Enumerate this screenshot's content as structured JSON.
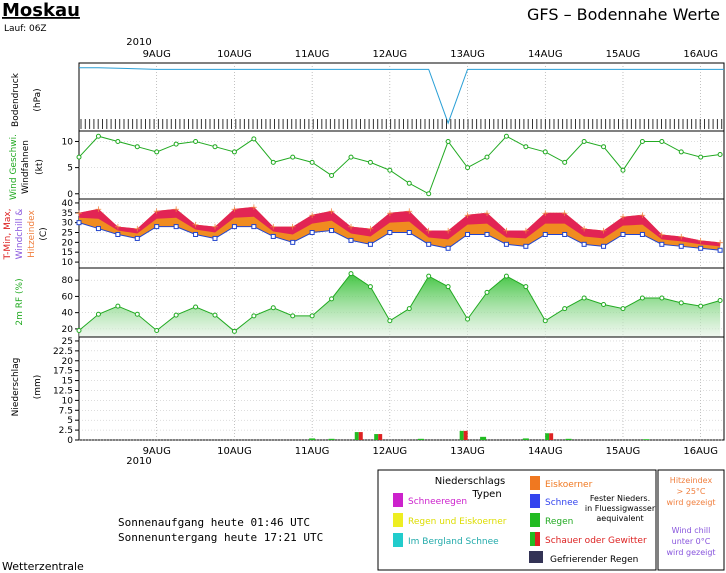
{
  "header": {
    "location": "Moskau",
    "run": "Lauf: 06Z",
    "title": "GFS – Bodennahe Werte"
  },
  "footer": {
    "sunrise": "Sonnenaufgang heute 01:46 UTC",
    "sunset": "Sonnenuntergang heute 17:21 UTC",
    "source": "Wetterzentrale"
  },
  "legend": {
    "title_line1": "Niederschlags",
    "title_line2": "Typen",
    "snow_rain": "Schneeregen",
    "rain_ice": "Regen und Eiskoerner",
    "mountain_snow": "Im Bergland Schnee",
    "ice_pellets": "Eiskoerner",
    "snow": "Schnee",
    "solid_line1": "Fester Nieders.",
    "solid_line2": "in Fluessigwasser",
    "solid_line3": "aequivalent",
    "rain": "Regen",
    "showers": "Schauer oder Gewitter",
    "freezing_rain": "Gefrierender Regen",
    "heat_line1": "Hitzeindex",
    "heat_line2": "> 25°C",
    "heat_line3": "wird gezeigt",
    "chill_line1": "Wind chill",
    "chill_line2": "unter 0°C",
    "chill_line3": "wird gezeigt"
  },
  "colors": {
    "pressure": "#2a9fd6",
    "wind": "#22aa22",
    "tmax_fill": "#e0185a",
    "tmin_fill": "#f08c20",
    "rh": "#22aa22",
    "snow_rain": "#cc22cc",
    "rain_ice": "#eeee22",
    "mountain_snow": "#22cccc",
    "ice_pellets": "#f07820",
    "snow": "#3344ee",
    "rain": "#22bb22",
    "showers": "#dd2222",
    "freezing_rain": "#333355",
    "chill_text": "#8855dd",
    "heat_text": "#f08040"
  },
  "chart_data": {
    "type": "line",
    "x_axis": {
      "top_year": "2010",
      "bottom_year": "2010",
      "day_labels": [
        "9AUG",
        "10AUG",
        "11AUG",
        "12AUG",
        "13AUG",
        "14AUG",
        "15AUG",
        "16AUG"
      ],
      "day_positions": [
        1,
        2,
        3,
        4,
        5,
        6,
        7,
        8
      ],
      "range": [
        0.0,
        8.3
      ]
    },
    "panels": [
      {
        "id": "pressure",
        "ylabel_line1": "Bodendruck",
        "ylabel_line2": "(hPa)",
        "series": [
          {
            "x": [
              0.0,
              0.25,
              1.0,
              2.0,
              3.0,
              4.0,
              4.5,
              4.75,
              5.0,
              5.5,
              6.0,
              7.0,
              8.0,
              8.3
            ],
            "values": [
              1010,
              1010,
              1009,
              1009,
              1009,
              1009,
              1009,
              975,
              1009,
              1009,
              1009,
              1009,
              1009,
              1009
            ]
          }
        ],
        "ylim": [
          970,
          1013
        ]
      },
      {
        "id": "wind",
        "ylabel_line1": "Wind Geschwi.",
        "ylabel_line2": "Windfahnen",
        "ylabel_line3": "(kt)",
        "yticks": [
          0,
          5,
          10
        ],
        "ylim": [
          -1,
          12
        ],
        "series": [
          {
            "x": [
              0.0,
              0.25,
              0.5,
              0.75,
              1.0,
              1.25,
              1.5,
              1.75,
              2.0,
              2.25,
              2.5,
              2.75,
              3.0,
              3.25,
              3.5,
              3.75,
              4.0,
              4.25,
              4.5,
              4.75,
              5.0,
              5.25,
              5.5,
              5.75,
              6.0,
              6.25,
              6.5,
              6.75,
              7.0,
              7.25,
              7.5,
              7.75,
              8.0,
              8.25
            ],
            "values": [
              7,
              11,
              10,
              9,
              8,
              9.5,
              10,
              9,
              8,
              10.5,
              6,
              7,
              6,
              3.5,
              7,
              6,
              4.5,
              2,
              0,
              10,
              5,
              7,
              11,
              9,
              8,
              6,
              10,
              9,
              4.5,
              10,
              10,
              8,
              7,
              7.5
            ]
          }
        ]
      },
      {
        "id": "temperature",
        "ylabel_line1": "T-Min, Max,",
        "ylabel_line2": "Windchill &",
        "ylabel_line3": "Hitzeindex",
        "ylabel_line4": "(C)",
        "yticks": [
          10,
          15,
          20,
          25,
          30,
          35,
          40
        ],
        "ylim": [
          7,
          42
        ],
        "series": [
          {
            "name": "T-Max",
            "x": [
              0.0,
              0.25,
              0.5,
              0.75,
              1.0,
              1.25,
              1.5,
              1.75,
              2.0,
              2.25,
              2.5,
              2.75,
              3.0,
              3.25,
              3.5,
              3.75,
              4.0,
              4.25,
              4.5,
              4.75,
              5.0,
              5.25,
              5.5,
              5.75,
              6.0,
              6.25,
              6.5,
              6.75,
              7.0,
              7.25,
              7.5,
              7.75,
              8.0,
              8.25
            ],
            "values": [
              35,
              37,
              28,
              27,
              36,
              37,
              29,
              28,
              37,
              38,
              28,
              28,
              34,
              36,
              28,
              27,
              35,
              36,
              26,
              26,
              34,
              35,
              26,
              26,
              35,
              35,
              27,
              26,
              33,
              34,
              24,
              23,
              21,
              20
            ]
          },
          {
            "name": "T-Min",
            "x": [
              0.0,
              0.25,
              0.5,
              0.75,
              1.0,
              1.25,
              1.5,
              1.75,
              2.0,
              2.25,
              2.5,
              2.75,
              3.0,
              3.25,
              3.5,
              3.75,
              4.0,
              4.25,
              4.5,
              4.75,
              5.0,
              5.25,
              5.5,
              5.75,
              6.0,
              6.25,
              6.5,
              6.75,
              7.0,
              7.25,
              7.5,
              7.75,
              8.0,
              8.25
            ],
            "values": [
              30,
              27,
              24,
              22,
              28,
              28,
              24,
              22,
              28,
              28,
              23,
              20,
              25,
              26,
              21,
              19,
              25,
              25,
              19,
              17,
              24,
              24,
              19,
              18,
              24,
              24,
              19,
              18,
              24,
              24,
              19,
              18,
              17,
              16
            ]
          }
        ]
      },
      {
        "id": "humidity",
        "ylabel_line1": "2m RF (%)",
        "yticks": [
          20,
          40,
          60,
          80
        ],
        "ylim": [
          10,
          95
        ],
        "series": [
          {
            "x": [
              0.0,
              0.25,
              0.5,
              0.75,
              1.0,
              1.25,
              1.5,
              1.75,
              2.0,
              2.25,
              2.5,
              2.75,
              3.0,
              3.25,
              3.5,
              3.75,
              4.0,
              4.25,
              4.5,
              4.75,
              5.0,
              5.25,
              5.5,
              5.75,
              6.0,
              6.25,
              6.5,
              6.75,
              7.0,
              7.25,
              7.5,
              7.75,
              8.0,
              8.25
            ],
            "values": [
              18,
              38,
              48,
              38,
              18,
              37,
              47,
              37,
              17,
              36,
              46,
              36,
              36,
              57,
              88,
              72,
              30,
              45,
              85,
              72,
              32,
              65,
              85,
              72,
              30,
              45,
              58,
              50,
              45,
              58,
              58,
              52,
              48,
              55
            ]
          }
        ]
      },
      {
        "id": "precipitation",
        "ylabel_line1": "Niederschlag",
        "ylabel_line2": "(mm)",
        "yticks": [
          0,
          2.5,
          5,
          7.5,
          10,
          12.5,
          15,
          17.5,
          20,
          22.5,
          25
        ],
        "ylim": [
          0,
          26
        ],
        "bars": [
          {
            "x": 3.0,
            "value": 0.4,
            "type": "rain"
          },
          {
            "x": 3.25,
            "value": 0.3,
            "type": "rain"
          },
          {
            "x": 3.6,
            "value": 2.0,
            "type": "showers"
          },
          {
            "x": 3.85,
            "value": 1.5,
            "type": "showers"
          },
          {
            "x": 4.4,
            "value": 0.3,
            "type": "rain"
          },
          {
            "x": 4.95,
            "value": 2.3,
            "type": "showers"
          },
          {
            "x": 5.2,
            "value": 0.8,
            "type": "rain"
          },
          {
            "x": 5.75,
            "value": 0.4,
            "type": "rain"
          },
          {
            "x": 6.05,
            "value": 1.7,
            "type": "showers"
          },
          {
            "x": 6.3,
            "value": 0.3,
            "type": "rain"
          },
          {
            "x": 7.3,
            "value": 0.2,
            "type": "rain"
          }
        ]
      }
    ]
  }
}
